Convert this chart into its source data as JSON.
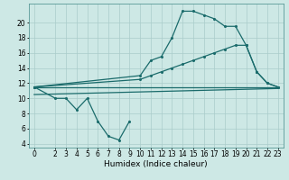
{
  "bg_color": "#cde8e5",
  "grid_color": "#aaccca",
  "line_color": "#1a6b6b",
  "line_width": 0.9,
  "marker_size": 2.2,
  "xlabel": "Humidex (Indice chaleur)",
  "xlabel_fontsize": 6.5,
  "tick_fontsize": 5.5,
  "ylim": [
    3.5,
    22.5
  ],
  "xlim": [
    -0.5,
    23.5
  ],
  "yticks": [
    4,
    6,
    8,
    10,
    12,
    14,
    16,
    18,
    20
  ],
  "xticks": [
    0,
    2,
    3,
    4,
    5,
    6,
    7,
    8,
    9,
    10,
    11,
    12,
    13,
    14,
    15,
    16,
    17,
    18,
    19,
    20,
    21,
    22,
    23
  ],
  "line1_x": [
    0,
    2,
    3,
    4,
    5,
    6,
    7,
    8,
    9
  ],
  "line1_y": [
    11.5,
    10.0,
    10.0,
    8.5,
    10.0,
    7.0,
    5.0,
    4.5,
    7.0
  ],
  "line2_x": [
    0,
    10,
    11,
    12,
    13,
    14,
    15,
    16,
    17,
    18,
    19,
    20,
    21,
    22,
    23
  ],
  "line2_y": [
    11.5,
    13.0,
    15.0,
    15.5,
    18.0,
    21.5,
    21.5,
    21.0,
    20.5,
    19.5,
    19.5,
    17.0,
    13.5,
    12.0,
    11.5
  ],
  "line3_x": [
    0,
    10,
    11,
    12,
    13,
    14,
    15,
    16,
    17,
    18,
    19,
    20,
    21,
    22,
    23
  ],
  "line3_y": [
    11.5,
    12.5,
    13.0,
    13.5,
    14.0,
    14.5,
    15.0,
    15.5,
    16.0,
    16.5,
    17.0,
    17.0,
    13.5,
    12.0,
    11.5
  ],
  "line4_x": [
    0,
    23
  ],
  "line4_y": [
    11.5,
    11.5
  ],
  "line5_x": [
    0,
    23
  ],
  "line5_y": [
    10.5,
    11.3
  ]
}
